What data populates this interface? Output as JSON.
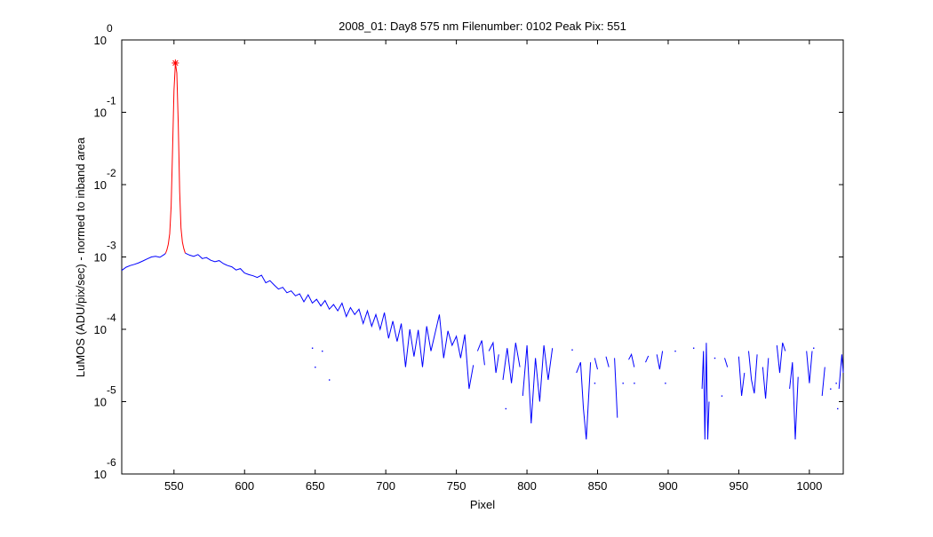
{
  "chart_data": {
    "type": "line",
    "title": "2008_01: Day8  575 nm  Filenumber: 0102 Peak Pix: 551",
    "xlabel": "Pixel",
    "ylabel": "LuMOS (ADU/pix/sec) - normed to inband area",
    "xlim": [
      513,
      1024
    ],
    "ylim": [
      1e-06,
      1
    ],
    "yscale": "log",
    "grid": false,
    "legend": "none",
    "x_ticks": [
      550,
      600,
      650,
      700,
      750,
      800,
      850,
      900,
      950,
      1000
    ],
    "y_ticks": [
      {
        "value": 1e-06,
        "base": "10",
        "exp": "-6"
      },
      {
        "value": 1e-05,
        "base": "10",
        "exp": "-5"
      },
      {
        "value": 0.0001,
        "base": "10",
        "exp": "-4"
      },
      {
        "value": 0.001,
        "base": "10",
        "exp": "-3"
      },
      {
        "value": 0.01,
        "base": "10",
        "exp": "-2"
      },
      {
        "value": 0.1,
        "base": "10",
        "exp": "-1"
      },
      {
        "value": 1,
        "base": "10",
        "exp": "0"
      }
    ],
    "peak_marker": {
      "x": 551,
      "y": 0.48,
      "symbol": "*",
      "color": "#ff0000"
    },
    "series": [
      {
        "color": "#0000ff",
        "segments": [
          [
            [
              513,
              0.00065
            ],
            [
              516,
              0.00072
            ],
            [
              519,
              0.00076
            ],
            [
              522,
              0.00079
            ],
            [
              525,
              0.00083
            ],
            [
              528,
              0.00088
            ],
            [
              531,
              0.00094
            ],
            [
              534,
              0.001
            ],
            [
              537,
              0.00102
            ],
            [
              540,
              0.00099
            ],
            [
              543,
              0.00108
            ],
            [
              544,
              0.00112
            ]
          ],
          [
            [
              558,
              0.00113
            ],
            [
              561,
              0.00106
            ],
            [
              564,
              0.00102
            ],
            [
              567,
              0.00108
            ],
            [
              570,
              0.00095
            ],
            [
              573,
              0.00098
            ],
            [
              576,
              0.0009
            ],
            [
              579,
              0.00086
            ],
            [
              582,
              0.00089
            ],
            [
              585,
              0.00081
            ],
            [
              588,
              0.00076
            ],
            [
              591,
              0.00073
            ],
            [
              594,
              0.00066
            ],
            [
              597,
              0.00069
            ],
            [
              600,
              0.0006
            ],
            [
              603,
              0.00057
            ],
            [
              606,
              0.00055
            ],
            [
              609,
              0.00052
            ],
            [
              612,
              0.00056
            ],
            [
              615,
              0.00044
            ],
            [
              618,
              0.00047
            ],
            [
              621,
              0.00041
            ],
            [
              624,
              0.00036
            ],
            [
              627,
              0.00038
            ],
            [
              630,
              0.00032
            ],
            [
              633,
              0.00034
            ],
            [
              636,
              0.00029
            ],
            [
              639,
              0.00031
            ],
            [
              642,
              0.00024
            ],
            [
              645,
              0.0003
            ],
            [
              648,
              0.00023
            ],
            [
              651,
              0.00026
            ],
            [
              654,
              0.00021
            ],
            [
              657,
              0.00025
            ],
            [
              660,
              0.00019
            ],
            [
              663,
              0.00022
            ],
            [
              666,
              0.00018
            ],
            [
              669,
              0.00023
            ],
            [
              672,
              0.00015
            ],
            [
              675,
              0.0002
            ],
            [
              678,
              0.00016
            ],
            [
              681,
              0.00019
            ],
            [
              684,
              0.00012
            ],
            [
              687,
              0.00018
            ],
            [
              690,
              0.00011
            ],
            [
              693,
              0.00016
            ],
            [
              696,
              0.0001
            ],
            [
              699,
              0.00017
            ],
            [
              702,
              7.5e-05
            ],
            [
              705,
              0.00013
            ],
            [
              708,
              6.8e-05
            ],
            [
              711,
              0.00012
            ],
            [
              714,
              3e-05
            ],
            [
              717,
              0.0001
            ],
            [
              720,
              4.2e-05
            ],
            [
              723,
              9.8e-05
            ],
            [
              726,
              3e-05
            ],
            [
              729,
              0.00011
            ],
            [
              732,
              5e-05
            ],
            [
              735,
              9e-05
            ],
            [
              738,
              0.00016
            ],
            [
              741,
              4e-05
            ],
            [
              744,
              9.5e-05
            ],
            [
              747,
              6e-05
            ],
            [
              750,
              8e-05
            ],
            [
              753,
              4e-05
            ],
            [
              756,
              8.5e-05
            ],
            [
              759,
              1.5e-05
            ],
            [
              762,
              3.2e-05
            ]
          ],
          [
            [
              765,
              5e-05
            ],
            [
              768,
              7e-05
            ],
            [
              770,
              3.2e-05
            ]
          ],
          [
            [
              773,
              5e-05
            ],
            [
              776,
              6.5e-05
            ],
            [
              778,
              2.5e-05
            ],
            [
              780,
              4.5e-05
            ]
          ],
          [
            [
              783,
              2e-05
            ],
            [
              786,
              5.5e-05
            ],
            [
              789,
              1.8e-05
            ],
            [
              792,
              6.5e-05
            ],
            [
              795,
              3e-05
            ]
          ],
          [
            [
              797,
              1.2e-05
            ],
            [
              800,
              6e-05
            ],
            [
              803,
              5e-06
            ],
            [
              806,
              4e-05
            ],
            [
              809,
              1e-05
            ],
            [
              812,
              6e-05
            ],
            [
              815,
              2e-05
            ],
            [
              818,
              5.5e-05
            ]
          ],
          [
            [
              835,
              2.5e-05
            ],
            [
              838,
              3.5e-05
            ],
            [
              840,
              8e-06
            ],
            [
              842,
              3e-06
            ],
            [
              845,
              3.5e-05
            ]
          ],
          [
            [
              848,
              4e-05
            ],
            [
              850,
              2.8e-05
            ]
          ],
          [
            [
              856,
              4.2e-05
            ],
            [
              858,
              3e-05
            ]
          ],
          [
            [
              862,
              4e-05
            ],
            [
              864,
              6e-06
            ]
          ],
          [
            [
              872,
              3.8e-05
            ],
            [
              874,
              4.5e-05
            ],
            [
              876,
              3e-05
            ]
          ],
          [
            [
              884,
              3.5e-05
            ],
            [
              886,
              4.3e-05
            ]
          ],
          [
            [
              892,
              4.5e-05
            ],
            [
              894,
              2.8e-05
            ],
            [
              896,
              5e-05
            ]
          ],
          [
            [
              924,
              1.5e-05
            ],
            [
              925,
              5e-05
            ],
            [
              926,
              3e-06
            ],
            [
              927,
              6.5e-05
            ],
            [
              928,
              3e-06
            ],
            [
              929,
              1e-05
            ]
          ],
          [
            [
              940,
              4e-05
            ],
            [
              942,
              3e-05
            ]
          ],
          [
            [
              950,
              4.2e-05
            ],
            [
              952,
              1.2e-05
            ],
            [
              954,
              2.5e-05
            ]
          ],
          [
            [
              957,
              5e-05
            ],
            [
              959,
              2e-05
            ],
            [
              961,
              1.3e-05
            ],
            [
              963,
              4.5e-05
            ]
          ],
          [
            [
              967,
              3e-05
            ],
            [
              969,
              1.1e-05
            ],
            [
              971,
              4e-05
            ]
          ],
          [
            [
              977,
              6e-05
            ],
            [
              979,
              2.5e-05
            ],
            [
              981,
              6.5e-05
            ],
            [
              983,
              5e-05
            ]
          ],
          [
            [
              986,
              1.5e-05
            ],
            [
              988,
              3.5e-05
            ],
            [
              990,
              3e-06
            ],
            [
              992,
              2.2e-05
            ]
          ],
          [
            [
              998,
              5e-05
            ],
            [
              1000,
              1.8e-05
            ],
            [
              1002,
              5e-05
            ]
          ],
          [
            [
              1009,
              1.2e-05
            ],
            [
              1011,
              3e-05
            ]
          ],
          [
            [
              1021,
              1.5e-05
            ],
            [
              1023,
              4.5e-05
            ],
            [
              1024,
              2.5e-05
            ]
          ]
        ]
      },
      {
        "color": "#ff0000",
        "segments": [
          [
            [
              544,
              0.00112
            ],
            [
              545,
              0.00125
            ],
            [
              546,
              0.0015
            ],
            [
              547,
              0.0021
            ],
            [
              548,
              0.005
            ],
            [
              549,
              0.03
            ],
            [
              550,
              0.2
            ],
            [
              551,
              0.48
            ],
            [
              552,
              0.35
            ],
            [
              553,
              0.07
            ],
            [
              554,
              0.008
            ],
            [
              555,
              0.0025
            ],
            [
              556,
              0.0016
            ],
            [
              557,
              0.0013
            ],
            [
              558,
              0.00113
            ]
          ]
        ]
      }
    ],
    "dots": [
      [
        648,
        5.5e-05
      ],
      [
        650,
        3e-05
      ],
      [
        655,
        5e-05
      ],
      [
        660,
        2e-05
      ],
      [
        785,
        8e-06
      ],
      [
        832,
        5.2e-05
      ],
      [
        848,
        1.8e-05
      ],
      [
        868,
        1.8e-05
      ],
      [
        876,
        1.8e-05
      ],
      [
        898,
        1.8e-05
      ],
      [
        905,
        5e-05
      ],
      [
        918,
        5.5e-05
      ],
      [
        933,
        4e-05
      ],
      [
        938,
        1.2e-05
      ],
      [
        1003,
        5.5e-05
      ],
      [
        1015,
        1.5e-05
      ],
      [
        1019,
        1.8e-05
      ],
      [
        1020,
        8e-06
      ]
    ]
  }
}
